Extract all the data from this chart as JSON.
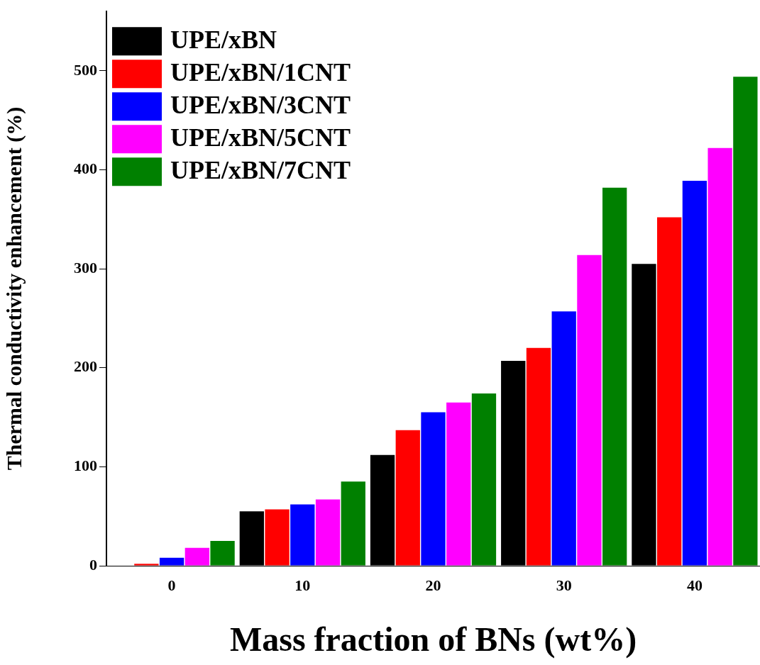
{
  "chart_data": {
    "type": "bar",
    "xlabel": "Mass fraction of BNs (wt%)",
    "ylabel": "Thermal conductivity enhancement (%)",
    "categories": [
      "0",
      "10",
      "20",
      "30",
      "40"
    ],
    "series": [
      {
        "name": "UPE/xBN",
        "color": "#000000",
        "values": [
          0,
          55,
          112,
          207,
          305
        ]
      },
      {
        "name": "UPE/xBN/1CNT",
        "color": "#ff0000",
        "values": [
          2,
          57,
          137,
          220,
          352
        ]
      },
      {
        "name": "UPE/xBN/3CNT",
        "color": "#0000ff",
        "values": [
          8,
          62,
          155,
          257,
          389
        ]
      },
      {
        "name": "UPE/xBN/5CNT",
        "color": "#ff00ff",
        "values": [
          18,
          67,
          165,
          314,
          422
        ]
      },
      {
        "name": "UPE/xBN/7CNT",
        "color": "#008000",
        "values": [
          25,
          85,
          174,
          382,
          494
        ]
      }
    ],
    "ylim": [
      0,
      560
    ],
    "yticks": [
      0,
      100,
      200,
      300,
      400,
      500
    ],
    "grid": false,
    "legend": "top left"
  }
}
